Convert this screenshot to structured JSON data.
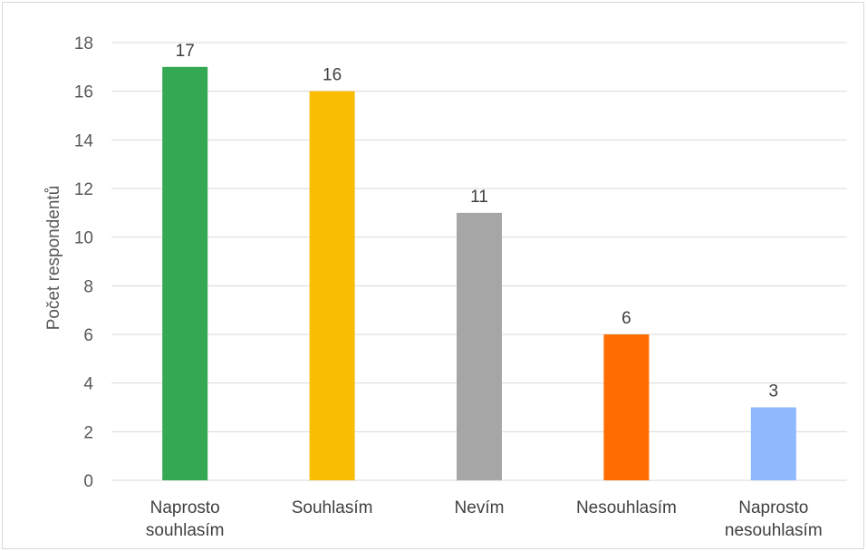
{
  "chart_data": {
    "type": "bar",
    "title": "",
    "xlabel": "",
    "ylabel": "Počet respondentů",
    "ylim": [
      0,
      18
    ],
    "yticks": [
      0,
      2,
      4,
      6,
      8,
      10,
      12,
      14,
      16,
      18
    ],
    "grid": true,
    "legend": "none",
    "categories": [
      [
        "Naprosto",
        "souhlasím"
      ],
      [
        "Souhlasím"
      ],
      [
        "Nevím"
      ],
      [
        "Nesouhlasím"
      ],
      [
        "Naprosto",
        "nesouhlasím"
      ]
    ],
    "values": [
      17,
      16,
      11,
      6,
      3
    ],
    "colors": [
      "#34a853",
      "#fbbc04",
      "#a6a6a6",
      "#ff6d01",
      "#8fb8fd"
    ]
  }
}
